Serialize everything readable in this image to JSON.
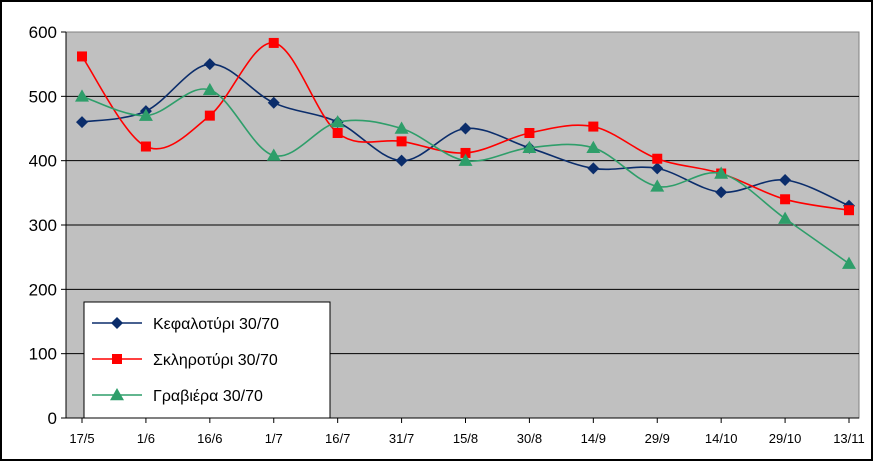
{
  "chart_data": {
    "type": "line",
    "x": [
      "17/5",
      "1/6",
      "16/6",
      "1/7",
      "16/7",
      "31/7",
      "15/8",
      "30/8",
      "14/9",
      "29/9",
      "14/10",
      "29/10",
      "13/11"
    ],
    "series": [
      {
        "name": "Κεφαλοτύρι 30/70",
        "color": "#0b2d6b",
        "marker": "diamond",
        "values": [
          460,
          477,
          550,
          490,
          460,
          400,
          450,
          420,
          388,
          388,
          351,
          370,
          330
        ]
      },
      {
        "name": "Σκληροτύρι 30/70",
        "color": "#ff0000",
        "marker": "square",
        "values": [
          562,
          422,
          470,
          583,
          443,
          430,
          412,
          443,
          453,
          403,
          380,
          340,
          323
        ]
      },
      {
        "name": "Γραβιέρα 30/70",
        "color": "#2e9e6a",
        "marker": "triangle",
        "values": [
          500,
          470,
          510,
          408,
          460,
          450,
          400,
          420,
          420,
          360,
          380,
          310,
          240
        ]
      }
    ],
    "y_ticks": [
      "0",
      "100",
      "200",
      "300",
      "400",
      "500",
      "600"
    ],
    "ylim": [
      0,
      600
    ],
    "grid": true,
    "plot_background": "#c0c0c0",
    "legend_position": "bottom-left"
  }
}
